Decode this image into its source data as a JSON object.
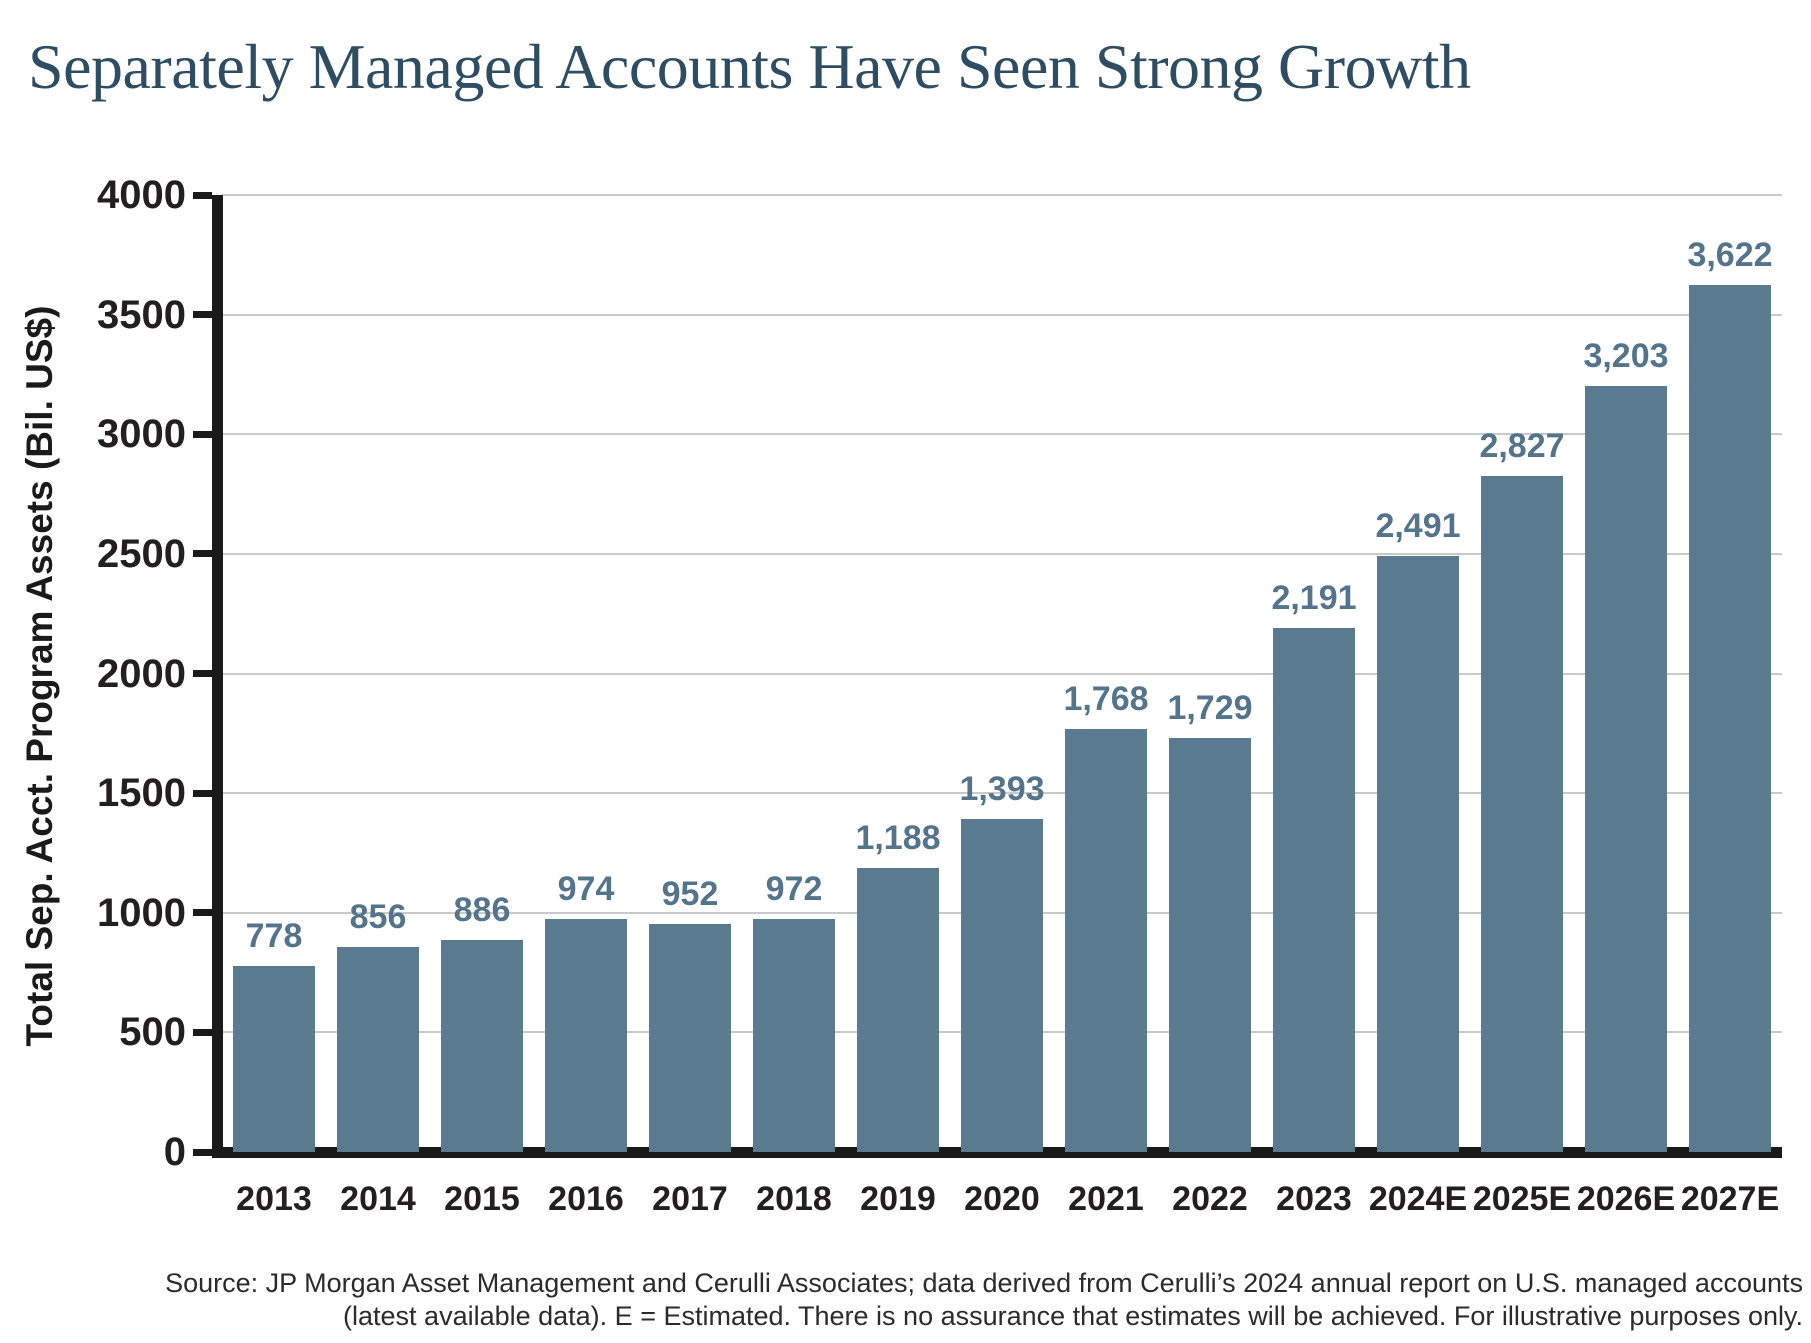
{
  "header": {
    "title": "Separately Managed Accounts Have Seen Strong Growth"
  },
  "chart_data": {
    "type": "bar",
    "title": "Separately Managed Accounts Have Seen Strong Growth",
    "xlabel": "",
    "ylabel": "Total Sep. Acct. Program Assets (Bil. US$)",
    "ylim": [
      0,
      4000
    ],
    "yticks": [
      0,
      500,
      1000,
      1500,
      2000,
      2500,
      3000,
      3500,
      4000
    ],
    "grid": "horizontal",
    "legend": "none",
    "categories": [
      "2013",
      "2014",
      "2015",
      "2016",
      "2017",
      "2018",
      "2019",
      "2020",
      "2021",
      "2022",
      "2023",
      "2024E",
      "2025E",
      "2026E",
      "2027E"
    ],
    "values": [
      778,
      856,
      886,
      974,
      952,
      972,
      1188,
      1393,
      1768,
      1729,
      2191,
      2491,
      2827,
      3203,
      3622
    ],
    "value_labels": [
      "778",
      "856",
      "886",
      "974",
      "952",
      "972",
      "1,188",
      "1,393",
      "1,768",
      "1,729",
      "2,191",
      "2,491",
      "2,827",
      "3,203",
      "3,622"
    ],
    "colors": {
      "bar": "#5a7a8f",
      "value_label": "#54748b",
      "title": "#2e4d63",
      "tick_label": "#231f20",
      "axis": "#1a1a1a",
      "gridline": "#c9c9c9",
      "background": "#ffffff"
    }
  },
  "footer": {
    "source_line1": "Source: JP Morgan Asset Management and Cerulli Associates; data derived from Cerulli’s 2024 annual report on U.S. managed accounts",
    "source_line2": "(latest available data). E = Estimated. There is no assurance that estimates will be achieved. For illustrative purposes only."
  }
}
